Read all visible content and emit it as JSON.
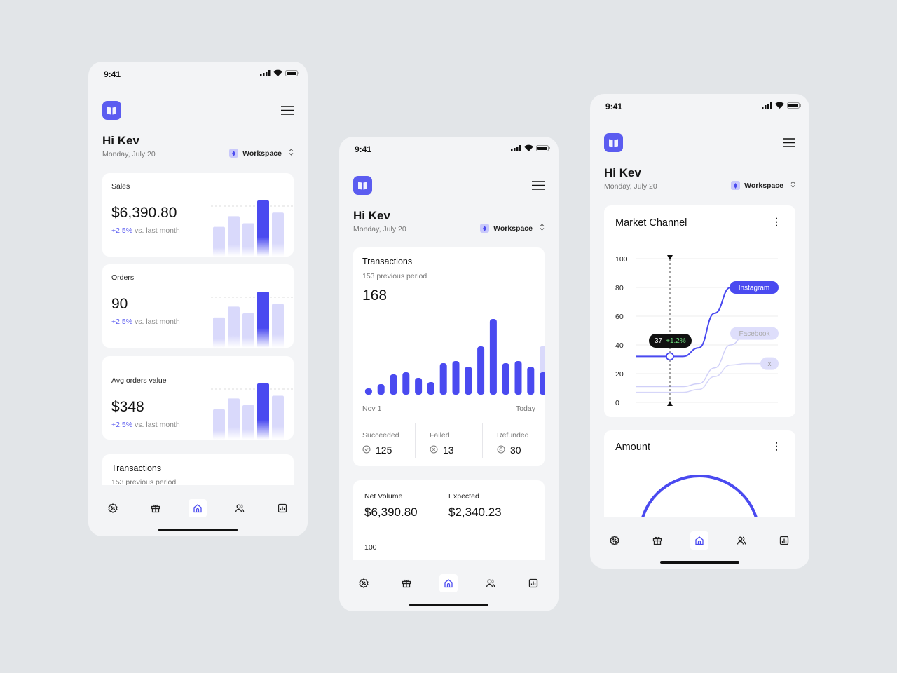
{
  "colors": {
    "accent": "#4a4af0",
    "accent_light": "#d9d9fb",
    "background": "#e2e5e8",
    "positive": "#6fdc7e"
  },
  "common": {
    "time": "9:41",
    "greeting": "Hi Kev",
    "date": "Monday, July 20",
    "workspace": "Workspace",
    "nav": [
      {
        "icon": "discount-icon"
      },
      {
        "icon": "gift-icon"
      },
      {
        "icon": "home-icon",
        "active": true
      },
      {
        "icon": "users-icon"
      },
      {
        "icon": "report-icon"
      }
    ]
  },
  "phone1": {
    "cards": [
      {
        "label": "Sales",
        "value": "$6,390.80",
        "change": "+2.5%",
        "compare": "vs. last month",
        "bars": [
          28,
          43,
          33,
          65,
          48
        ],
        "highlight": 3
      },
      {
        "label": "Orders",
        "value": "90",
        "change": "+2.5%",
        "compare": "vs. last month",
        "bars": [
          30,
          46,
          36,
          68,
          50
        ],
        "highlight": 3
      },
      {
        "label": "Avg orders value",
        "value": "$348",
        "change": "+2.5%",
        "compare": "vs. last month",
        "bars": [
          30,
          46,
          36,
          68,
          50
        ],
        "highlight": 3
      }
    ],
    "transactions": {
      "title": "Transactions",
      "subtitle": "153 previous period"
    }
  },
  "phone2": {
    "transactions": {
      "title": "Transactions",
      "subtitle": "153 previous period",
      "total": "168",
      "bars": [
        9,
        15,
        29,
        32,
        24,
        18,
        45,
        48,
        40,
        69,
        108,
        45,
        48,
        40,
        32
      ],
      "last_bar_ghost": 69,
      "x_start": "Nov 1",
      "x_end": "Today",
      "stats": [
        {
          "label": "Succeeded",
          "value": "125",
          "icon": "check-circle-icon"
        },
        {
          "label": "Failed",
          "value": "13",
          "icon": "x-circle-icon"
        },
        {
          "label": "Refunded",
          "value": "30",
          "icon": "refund-icon"
        }
      ]
    },
    "volume": {
      "net_label": "Net Volume",
      "net_value": "$6,390.80",
      "expected_label": "Expected",
      "expected_value": "$2,340.23",
      "axis_top": "100"
    }
  },
  "phone3": {
    "chart_data": {
      "type": "line",
      "title": "Market Channel",
      "ylim": [
        0,
        100
      ],
      "yticks": [
        "100",
        "80",
        "60",
        "40",
        "20",
        "0"
      ],
      "series": [
        {
          "name": "Instagram",
          "values": [
            32,
            32,
            32,
            32,
            38,
            62,
            80,
            80,
            80,
            80
          ]
        },
        {
          "name": "Facebook",
          "values": [
            11,
            11,
            11,
            11,
            13,
            24,
            40,
            48,
            48,
            48
          ]
        },
        {
          "name": "x",
          "values": [
            7,
            7,
            7,
            7,
            9,
            18,
            26,
            27,
            27,
            27
          ]
        }
      ],
      "tooltip": {
        "value": "37",
        "change": "+1.2%"
      }
    },
    "amount": {
      "title": "Amount"
    }
  }
}
